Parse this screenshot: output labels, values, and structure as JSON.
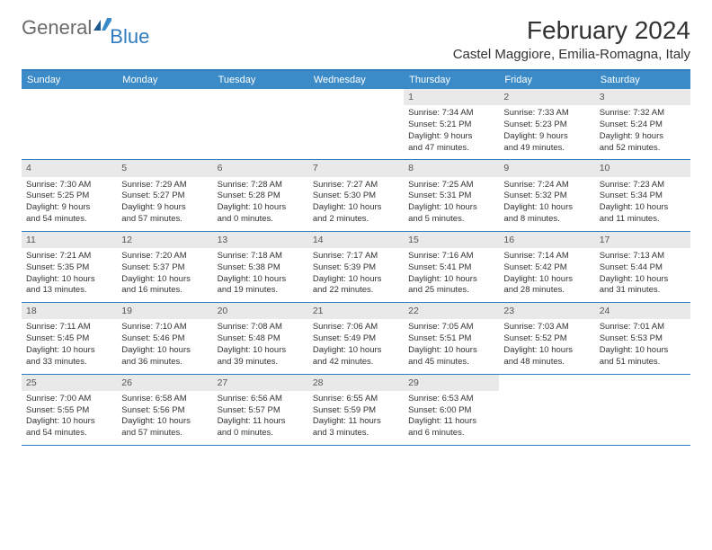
{
  "logo": {
    "general": "General",
    "blue": "Blue"
  },
  "header": {
    "month_title": "February 2024",
    "location": "Castel Maggiore, Emilia-Romagna, Italy"
  },
  "colors": {
    "header_bar": "#3b8bc9",
    "border": "#2f7bbf",
    "daynum_bg": "#e9e9e9",
    "text": "#333333"
  },
  "days_of_week": [
    "Sunday",
    "Monday",
    "Tuesday",
    "Wednesday",
    "Thursday",
    "Friday",
    "Saturday"
  ],
  "weeks": [
    [
      {
        "empty": true
      },
      {
        "empty": true
      },
      {
        "empty": true
      },
      {
        "empty": true
      },
      {
        "num": "1",
        "sunrise": "Sunrise: 7:34 AM",
        "sunset": "Sunset: 5:21 PM",
        "day1": "Daylight: 9 hours",
        "day2": "and 47 minutes."
      },
      {
        "num": "2",
        "sunrise": "Sunrise: 7:33 AM",
        "sunset": "Sunset: 5:23 PM",
        "day1": "Daylight: 9 hours",
        "day2": "and 49 minutes."
      },
      {
        "num": "3",
        "sunrise": "Sunrise: 7:32 AM",
        "sunset": "Sunset: 5:24 PM",
        "day1": "Daylight: 9 hours",
        "day2": "and 52 minutes."
      }
    ],
    [
      {
        "num": "4",
        "sunrise": "Sunrise: 7:30 AM",
        "sunset": "Sunset: 5:25 PM",
        "day1": "Daylight: 9 hours",
        "day2": "and 54 minutes."
      },
      {
        "num": "5",
        "sunrise": "Sunrise: 7:29 AM",
        "sunset": "Sunset: 5:27 PM",
        "day1": "Daylight: 9 hours",
        "day2": "and 57 minutes."
      },
      {
        "num": "6",
        "sunrise": "Sunrise: 7:28 AM",
        "sunset": "Sunset: 5:28 PM",
        "day1": "Daylight: 10 hours",
        "day2": "and 0 minutes."
      },
      {
        "num": "7",
        "sunrise": "Sunrise: 7:27 AM",
        "sunset": "Sunset: 5:30 PM",
        "day1": "Daylight: 10 hours",
        "day2": "and 2 minutes."
      },
      {
        "num": "8",
        "sunrise": "Sunrise: 7:25 AM",
        "sunset": "Sunset: 5:31 PM",
        "day1": "Daylight: 10 hours",
        "day2": "and 5 minutes."
      },
      {
        "num": "9",
        "sunrise": "Sunrise: 7:24 AM",
        "sunset": "Sunset: 5:32 PM",
        "day1": "Daylight: 10 hours",
        "day2": "and 8 minutes."
      },
      {
        "num": "10",
        "sunrise": "Sunrise: 7:23 AM",
        "sunset": "Sunset: 5:34 PM",
        "day1": "Daylight: 10 hours",
        "day2": "and 11 minutes."
      }
    ],
    [
      {
        "num": "11",
        "sunrise": "Sunrise: 7:21 AM",
        "sunset": "Sunset: 5:35 PM",
        "day1": "Daylight: 10 hours",
        "day2": "and 13 minutes."
      },
      {
        "num": "12",
        "sunrise": "Sunrise: 7:20 AM",
        "sunset": "Sunset: 5:37 PM",
        "day1": "Daylight: 10 hours",
        "day2": "and 16 minutes."
      },
      {
        "num": "13",
        "sunrise": "Sunrise: 7:18 AM",
        "sunset": "Sunset: 5:38 PM",
        "day1": "Daylight: 10 hours",
        "day2": "and 19 minutes."
      },
      {
        "num": "14",
        "sunrise": "Sunrise: 7:17 AM",
        "sunset": "Sunset: 5:39 PM",
        "day1": "Daylight: 10 hours",
        "day2": "and 22 minutes."
      },
      {
        "num": "15",
        "sunrise": "Sunrise: 7:16 AM",
        "sunset": "Sunset: 5:41 PM",
        "day1": "Daylight: 10 hours",
        "day2": "and 25 minutes."
      },
      {
        "num": "16",
        "sunrise": "Sunrise: 7:14 AM",
        "sunset": "Sunset: 5:42 PM",
        "day1": "Daylight: 10 hours",
        "day2": "and 28 minutes."
      },
      {
        "num": "17",
        "sunrise": "Sunrise: 7:13 AM",
        "sunset": "Sunset: 5:44 PM",
        "day1": "Daylight: 10 hours",
        "day2": "and 31 minutes."
      }
    ],
    [
      {
        "num": "18",
        "sunrise": "Sunrise: 7:11 AM",
        "sunset": "Sunset: 5:45 PM",
        "day1": "Daylight: 10 hours",
        "day2": "and 33 minutes."
      },
      {
        "num": "19",
        "sunrise": "Sunrise: 7:10 AM",
        "sunset": "Sunset: 5:46 PM",
        "day1": "Daylight: 10 hours",
        "day2": "and 36 minutes."
      },
      {
        "num": "20",
        "sunrise": "Sunrise: 7:08 AM",
        "sunset": "Sunset: 5:48 PM",
        "day1": "Daylight: 10 hours",
        "day2": "and 39 minutes."
      },
      {
        "num": "21",
        "sunrise": "Sunrise: 7:06 AM",
        "sunset": "Sunset: 5:49 PM",
        "day1": "Daylight: 10 hours",
        "day2": "and 42 minutes."
      },
      {
        "num": "22",
        "sunrise": "Sunrise: 7:05 AM",
        "sunset": "Sunset: 5:51 PM",
        "day1": "Daylight: 10 hours",
        "day2": "and 45 minutes."
      },
      {
        "num": "23",
        "sunrise": "Sunrise: 7:03 AM",
        "sunset": "Sunset: 5:52 PM",
        "day1": "Daylight: 10 hours",
        "day2": "and 48 minutes."
      },
      {
        "num": "24",
        "sunrise": "Sunrise: 7:01 AM",
        "sunset": "Sunset: 5:53 PM",
        "day1": "Daylight: 10 hours",
        "day2": "and 51 minutes."
      }
    ],
    [
      {
        "num": "25",
        "sunrise": "Sunrise: 7:00 AM",
        "sunset": "Sunset: 5:55 PM",
        "day1": "Daylight: 10 hours",
        "day2": "and 54 minutes."
      },
      {
        "num": "26",
        "sunrise": "Sunrise: 6:58 AM",
        "sunset": "Sunset: 5:56 PM",
        "day1": "Daylight: 10 hours",
        "day2": "and 57 minutes."
      },
      {
        "num": "27",
        "sunrise": "Sunrise: 6:56 AM",
        "sunset": "Sunset: 5:57 PM",
        "day1": "Daylight: 11 hours",
        "day2": "and 0 minutes."
      },
      {
        "num": "28",
        "sunrise": "Sunrise: 6:55 AM",
        "sunset": "Sunset: 5:59 PM",
        "day1": "Daylight: 11 hours",
        "day2": "and 3 minutes."
      },
      {
        "num": "29",
        "sunrise": "Sunrise: 6:53 AM",
        "sunset": "Sunset: 6:00 PM",
        "day1": "Daylight: 11 hours",
        "day2": "and 6 minutes."
      },
      {
        "empty": true
      },
      {
        "empty": true
      }
    ]
  ]
}
